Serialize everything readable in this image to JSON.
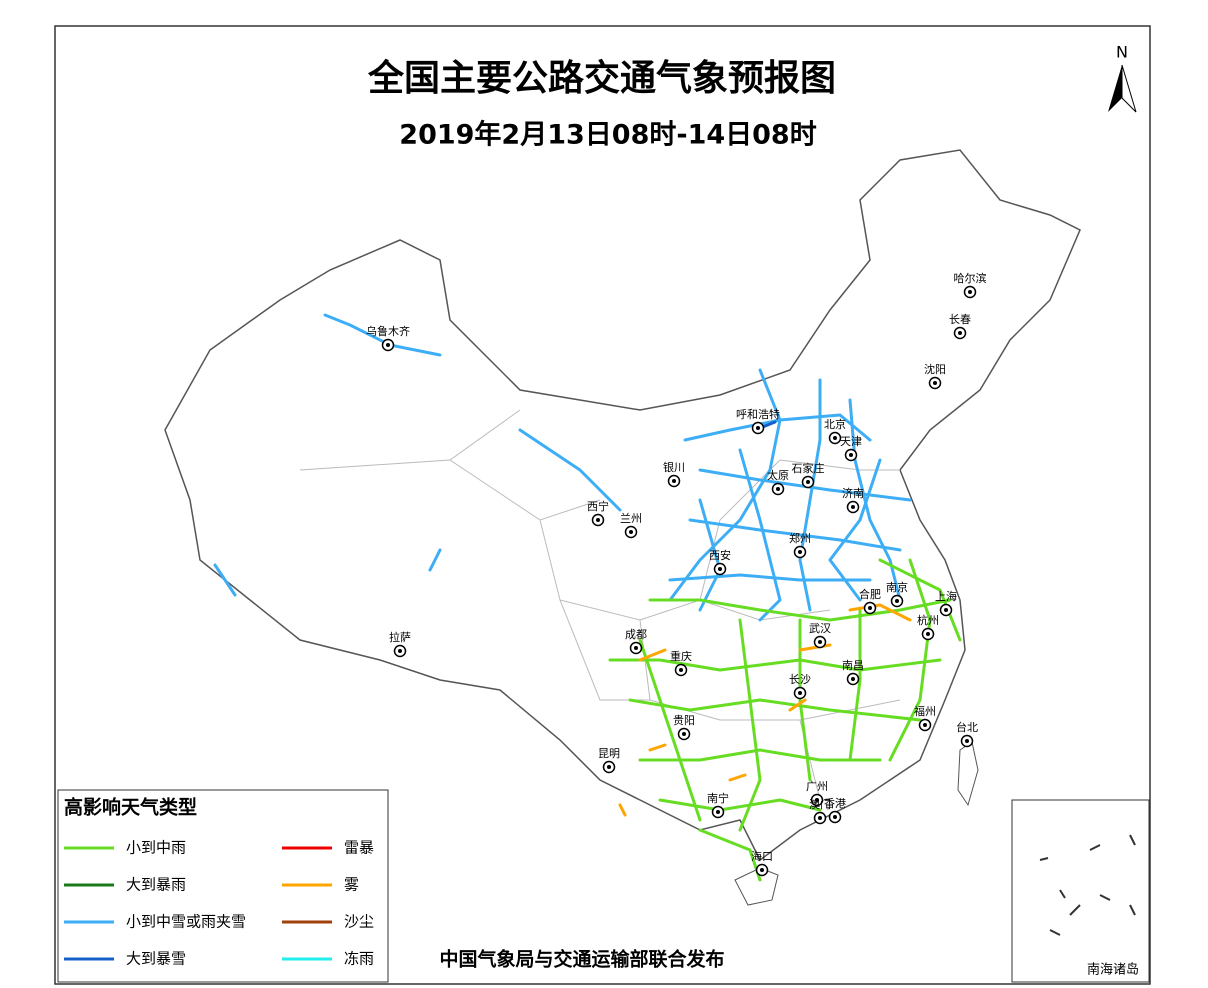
{
  "title": "全国主要公路交通气象预报图",
  "subtitle": "2019年2月13日08时-14日08时",
  "north": "N",
  "cities": [
    "乌鲁木齐",
    "哈尔滨",
    "长春",
    "沈阳",
    "呼和浩特",
    "北京",
    "天津",
    "银川",
    "太原",
    "石家庄",
    "济南",
    "西宁",
    "兰州",
    "郑州",
    "西安",
    "合肥",
    "南京",
    "上海",
    "成都",
    "武汉",
    "杭州",
    "重庆",
    "拉萨",
    "南昌",
    "长沙",
    "贵阳",
    "福州",
    "台北",
    "昆明",
    "广州",
    "澳门",
    "香港",
    "南宁",
    "海口"
  ],
  "legend": {
    "title": "高影响天气类型",
    "items": [
      {
        "name": "小到中雨",
        "color": "#66dd22"
      },
      {
        "name": "雷暴",
        "color": "#ee0000"
      },
      {
        "name": "大到暴雨",
        "color": "#1a7a1a"
      },
      {
        "name": "雾",
        "color": "#ffa500"
      },
      {
        "name": "小到中雪或雨夹雪",
        "color": "#3daef5"
      },
      {
        "name": "沙尘",
        "color": "#a0400a"
      },
      {
        "name": "大到暴雪",
        "color": "#1560c8"
      },
      {
        "name": "冻雨",
        "color": "#22eeee"
      }
    ]
  },
  "footer": "中国气象局与交通运输部联合发布",
  "inset_label": "南海诸岛"
}
